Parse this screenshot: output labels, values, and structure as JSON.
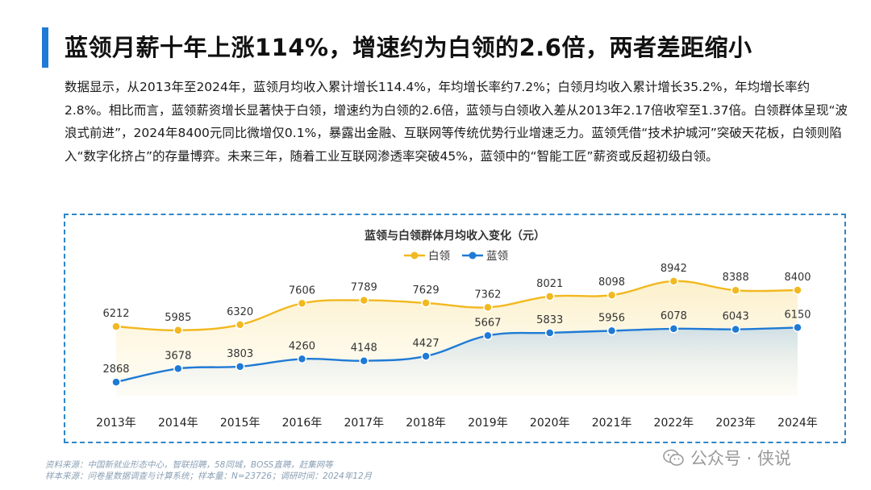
{
  "header": {
    "title": "蓝领月薪十年上涨114%，增速约为白领的2.6倍，两者差距缩小"
  },
  "body_text": "数据显示，从2013年至2024年，蓝领月均收入累计增长114.4%，年均增长率约7.2%；白领月均收入累计增长35.2%，年均增长率约2.8%。相比而言，蓝领薪资增长显著快于白领，增速约为白领的2.6倍，蓝领与白领收入差从2013年2.17倍收窄至1.37倍。白领群体呈现“波浪式前进”，2024年8400元同比微增仅0.1%，暴露出金融、互联网等传统优势行业增速乏力。蓝领凭借“技术护城河”突破天花板，白领则陷入“数字化挤占”的存量博弈。未来三年，随着工业互联网渗透率突破45%，蓝领中的“智能工匠”薪资或反超初级白领。",
  "chart_data": {
    "type": "line",
    "title": "蓝领与白领群体月均收入变化（元）",
    "categories": [
      "2013年",
      "2014年",
      "2015年",
      "2016年",
      "2017年",
      "2018年",
      "2019年",
      "2020年",
      "2021年",
      "2022年",
      "2023年",
      "2024年"
    ],
    "series": [
      {
        "name": "白领",
        "color": "#f2b81f",
        "values": [
          6212,
          5985,
          6320,
          7606,
          7789,
          7629,
          7362,
          8021,
          8098,
          8942,
          8388,
          8400
        ]
      },
      {
        "name": "蓝领",
        "color": "#1f7ad6",
        "values": [
          2868,
          3678,
          3803,
          4260,
          4148,
          4427,
          5667,
          5833,
          5956,
          6078,
          6043,
          6150
        ]
      }
    ],
    "legend_position": "top-center",
    "grid": false
  },
  "source": {
    "line1": "资料来源：中国新就业形态中心，智联招聘，58同城，BOSS直聘，赶集网等",
    "line2": "样本来源：问卷星数据调查与计算系统；样本量：N=23726；调研时间：2024年12月"
  },
  "watermark": {
    "text": "公众号 · 侠说",
    "icon": "wechat-icon"
  },
  "colors": {
    "accent": "#1f7ad6",
    "white_collar": "#f2b81f",
    "blue_collar": "#1f7ad6",
    "border": "#2e86c9"
  }
}
